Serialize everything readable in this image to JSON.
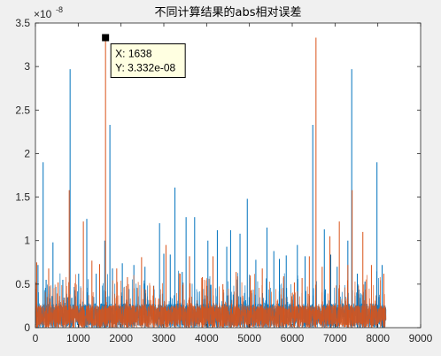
{
  "chart_data": {
    "type": "line",
    "title": "不同计算结果的abs相对误差",
    "xlabel": "",
    "ylabel": "",
    "xlim": [
      0,
      9000
    ],
    "ylim": [
      0,
      3.5
    ],
    "y_exponent_label": "×10",
    "y_exponent_power": "-8",
    "xticks": [
      0,
      1000,
      2000,
      3000,
      4000,
      5000,
      6000,
      7000,
      8000,
      9000
    ],
    "yticks": [
      0,
      0.5,
      1,
      1.5,
      2,
      2.5,
      3,
      3.5
    ],
    "x_tick_labels": [
      "0",
      "1000",
      "2000",
      "3000",
      "4000",
      "5000",
      "6000",
      "7000",
      "8000",
      "9000"
    ],
    "y_tick_labels": [
      "0",
      "0.5",
      "1",
      "1.5",
      "2",
      "2.5",
      "3",
      "3.5"
    ],
    "n_points": 8192,
    "grid": false,
    "series": [
      {
        "color": "#0072bd",
        "baseline_max": 0.28,
        "peaks": [
          [
            60,
            0.72
          ],
          [
            180,
            1.9
          ],
          [
            250,
            0.55
          ],
          [
            410,
            0.98
          ],
          [
            640,
            0.55
          ],
          [
            810,
            2.97
          ],
          [
            1010,
            0.62
          ],
          [
            1200,
            1.25
          ],
          [
            1420,
            0.62
          ],
          [
            1620,
            1.0
          ],
          [
            1740,
            2.33
          ],
          [
            1800,
            0.68
          ],
          [
            2030,
            0.74
          ],
          [
            2300,
            0.72
          ],
          [
            2560,
            0.7
          ],
          [
            2900,
            1.2
          ],
          [
            3000,
            0.85
          ],
          [
            3150,
            0.84
          ],
          [
            3260,
            1.61
          ],
          [
            3430,
            0.64
          ],
          [
            3520,
            1.27
          ],
          [
            3720,
            1.27
          ],
          [
            4030,
            1.0
          ],
          [
            4250,
            1.12
          ],
          [
            4470,
            0.93
          ],
          [
            4560,
            1.12
          ],
          [
            4780,
            1.08
          ],
          [
            4950,
            1.48
          ],
          [
            5150,
            0.78
          ],
          [
            5410,
            1.15
          ],
          [
            5570,
            0.88
          ],
          [
            5700,
            0.79
          ],
          [
            5860,
            0.83
          ],
          [
            6120,
            0.95
          ],
          [
            6300,
            0.82
          ],
          [
            6480,
            2.33
          ],
          [
            6750,
            1.13
          ],
          [
            6900,
            0.84
          ],
          [
            7050,
            0.7
          ],
          [
            7300,
            1.0
          ],
          [
            7390,
            2.97
          ],
          [
            7520,
            0.62
          ],
          [
            7700,
            0.53
          ],
          [
            7980,
            1.9
          ],
          [
            8100,
            0.72
          ]
        ]
      },
      {
        "color": "#d95319",
        "baseline_max": 0.26,
        "peaks": [
          [
            30,
            0.75
          ],
          [
            310,
            0.68
          ],
          [
            530,
            0.52
          ],
          [
            790,
            1.58
          ],
          [
            1120,
            1.22
          ],
          [
            1320,
            0.77
          ],
          [
            1500,
            0.73
          ],
          [
            1638,
            3.332
          ],
          [
            1900,
            0.68
          ],
          [
            2150,
            0.58
          ],
          [
            2480,
            0.81
          ],
          [
            2760,
            0.48
          ],
          [
            3050,
            0.95
          ],
          [
            3380,
            0.62
          ],
          [
            3600,
            0.82
          ],
          [
            3900,
            0.58
          ],
          [
            4150,
            0.82
          ],
          [
            4380,
            0.5
          ],
          [
            4690,
            0.64
          ],
          [
            5020,
            0.6
          ],
          [
            5300,
            0.68
          ],
          [
            5800,
            0.59
          ],
          [
            6050,
            0.52
          ],
          [
            6230,
            0.57
          ],
          [
            6400,
            0.82
          ],
          [
            6555,
            3.332
          ],
          [
            6700,
            0.7
          ],
          [
            6880,
            1.05
          ],
          [
            7100,
            1.22
          ],
          [
            7300,
            0.72
          ],
          [
            7400,
            1.58
          ],
          [
            7650,
            1.1
          ],
          [
            7850,
            0.72
          ],
          [
            8140,
            0.62
          ]
        ]
      }
    ],
    "datatip": {
      "x_text": "X: 1638",
      "y_text": "Y: 3.332e-08",
      "x": 1638,
      "y": 3.332
    }
  }
}
